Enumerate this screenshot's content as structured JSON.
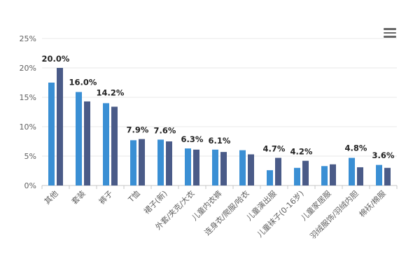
{
  "chart_data": {
    "type": "bar",
    "title": "",
    "xlabel": "",
    "ylabel": "",
    "ylim": [
      0,
      25
    ],
    "yticks": [
      "0%",
      "5%",
      "10%",
      "15%",
      "20%",
      "25%"
    ],
    "grid": true,
    "categories": [
      "其他",
      "套装",
      "裤子",
      "T恤",
      "裙子(新)",
      "外套/夹克/大衣",
      "儿童内衣裤",
      "连身衣/爬服/哈衣",
      "儿童演出服",
      "儿童袜子(0-16岁)",
      "儿童家居服",
      "羽绒服饰/羽绒内胆",
      "棉袄/棉服"
    ],
    "series": [
      {
        "name": "series-1",
        "color": "#3a8fd4",
        "values": [
          17.5,
          15.9,
          14.0,
          7.7,
          7.8,
          6.3,
          6.1,
          6.0,
          2.6,
          3.0,
          3.3,
          4.7,
          3.5
        ]
      },
      {
        "name": "series-2",
        "color": "#4a5b88",
        "values": [
          20.0,
          14.3,
          13.4,
          7.9,
          7.5,
          6.1,
          5.7,
          5.3,
          4.7,
          4.2,
          3.6,
          3.1,
          3.0
        ]
      }
    ],
    "data_labels": [
      "20.0%",
      "16.0%",
      "14.2%",
      "7.9%",
      "7.6%",
      "6.3%",
      "6.1%",
      "4.7%",
      "4.2%",
      "4.8%",
      "3.6%"
    ],
    "data_label_positions": [
      0,
      1,
      2,
      3,
      4,
      5,
      6,
      8,
      9,
      11,
      12
    ],
    "data_label_values": [
      20.0,
      16.0,
      14.2,
      7.9,
      7.6,
      6.3,
      6.1,
      4.7,
      4.2,
      4.8,
      3.6
    ]
  },
  "toolbar": {
    "menu_icon": "hamburger-menu-icon"
  }
}
